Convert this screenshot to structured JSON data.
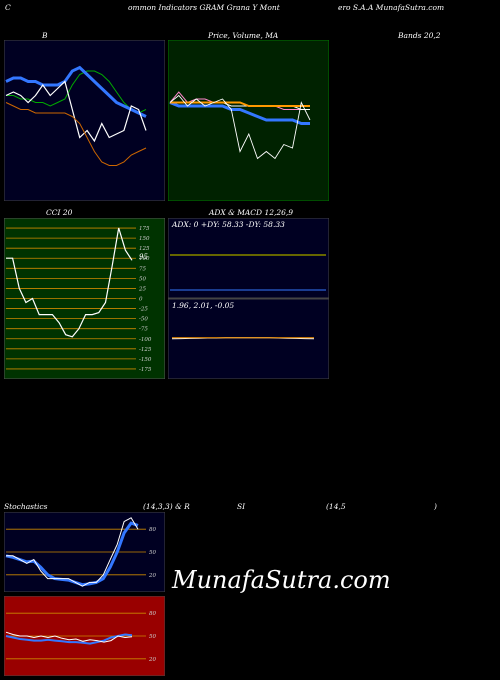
{
  "header": {
    "left": "C",
    "mid1": "ommon  Indicators GRAM Grana  Y Mont",
    "right": "ero  S.A.A  MunafaSutra.com"
  },
  "titles": {
    "b": "B",
    "price": "Price,  Volume,  MA",
    "bands": "Bands 20,2",
    "cci": "CCI 20",
    "adx": "ADX  & MACD 12,26,9",
    "stoch": "Stochastics",
    "stoch_params": "(14,3,3) & R",
    "rsi": "SI",
    "rsi_params": "(14,5",
    "rsi_close": ")"
  },
  "adx_readout": "ADX: 0  +DY: 58.33 -DY: 58.33",
  "macd_readout": "1.96,  2.01,  -0.05",
  "cci_value_label": "95",
  "watermark": "MunafaSutra.com",
  "colors": {
    "background": "#000000",
    "navy_panel": "#000022",
    "green_panel": "#002200",
    "cci_panel": "#003300",
    "rsi_panel": "#990000"
  },
  "chart_data": [
    {
      "type": "line",
      "title": "B",
      "series": [
        {
          "values": [
            82,
            82,
            81,
            81,
            80,
            80,
            79,
            80,
            81,
            85,
            88,
            89,
            89,
            88,
            86,
            83,
            80,
            78,
            77,
            78
          ]
        },
        {
          "values": [
            86,
            87,
            87,
            86,
            86,
            85,
            85,
            85,
            86,
            89,
            90,
            88,
            86,
            84,
            82,
            80,
            79,
            78,
            77,
            76
          ]
        },
        {
          "values": [
            82,
            83,
            82,
            80,
            82,
            85,
            82,
            84,
            86,
            78,
            70,
            72,
            69,
            74,
            70,
            71,
            72,
            79,
            78,
            72
          ]
        },
        {
          "values": [
            80,
            79,
            78,
            78,
            77,
            77,
            77,
            77,
            77,
            76,
            74,
            70,
            66,
            63,
            62,
            62,
            63,
            65,
            66,
            67
          ]
        }
      ]
    },
    {
      "type": "line",
      "title": "Price,  Volume,  MA",
      "series": [
        {
          "values": [
            80,
            83,
            80,
            81,
            81,
            80,
            80,
            80,
            80,
            79,
            79,
            79,
            79,
            78,
            78,
            78,
            78
          ]
        },
        {
          "values": [
            80,
            80,
            80,
            80,
            80,
            80,
            80,
            79,
            79,
            79,
            79,
            79,
            79,
            79,
            79,
            78,
            78
          ]
        },
        {
          "values": [
            80,
            79,
            79,
            79,
            79,
            79,
            79,
            78,
            78,
            77,
            76,
            75,
            75,
            75,
            75,
            74,
            74
          ]
        },
        {
          "values": [
            80,
            80,
            80,
            80,
            80,
            80,
            80,
            80,
            80,
            79,
            79,
            79,
            79,
            79,
            79,
            79,
            79
          ]
        },
        {
          "values": [
            80,
            82,
            79,
            81,
            79,
            80,
            81,
            78,
            66,
            71,
            64,
            66,
            64,
            68,
            67,
            80,
            75
          ]
        }
      ]
    },
    {
      "type": "line",
      "title": "CCI 20",
      "ylim": [
        -175,
        175
      ],
      "yticks": [
        175,
        150,
        125,
        100,
        75,
        50,
        25,
        0,
        -25,
        -50,
        -75,
        -100,
        -125,
        -150,
        -175
      ],
      "series": [
        {
          "values": [
            100,
            100,
            25,
            -10,
            0,
            -40,
            -40,
            -40,
            -60,
            -90,
            -95,
            -75,
            -40,
            -40,
            -35,
            -10,
            80,
            175,
            120,
            95
          ]
        }
      ]
    },
    {
      "type": "line",
      "title": "ADX  & MACD 12,26,9",
      "series": [
        {
          "name": "ADX",
          "values": [
            0,
            0,
            0,
            0,
            0,
            0,
            0,
            0,
            0,
            0,
            0,
            0,
            0,
            0,
            0,
            0,
            0,
            0,
            0
          ]
        },
        {
          "name": "+DY",
          "values": [
            58.33,
            58.33,
            58.33,
            58.33,
            58.33,
            58.33,
            58.33,
            58.33,
            58.33,
            58.33,
            58.33,
            58.33,
            58.33,
            58.33,
            58.33,
            58.33,
            58.33,
            58.33,
            58.33
          ]
        },
        {
          "name": "-DY",
          "values": [
            58.33,
            58.33,
            58.33,
            58.33,
            58.33,
            58.33,
            58.33,
            58.33,
            58.33,
            58.33,
            58.33,
            58.33,
            58.33,
            58.33,
            58.33,
            58.33,
            58.33,
            58.33,
            58.33
          ]
        }
      ]
    },
    {
      "type": "line",
      "title": "MACD",
      "series": [
        {
          "values": [
            1.96,
            1.97,
            1.98,
            1.99,
            2.0,
            2.0,
            2.01,
            2.01,
            2.01,
            2.01,
            2.01,
            2.01,
            2.0,
            1.99,
            1.98,
            1.97,
            1.96
          ]
        },
        {
          "values": [
            2.01,
            2.01,
            2.01,
            2.01,
            2.01,
            2.01,
            2.01,
            2.01,
            2.01,
            2.01,
            2.01,
            2.01,
            2.01,
            2.01,
            2.01,
            2.01,
            2.01
          ]
        }
      ]
    },
    {
      "type": "line",
      "title": "Stochastics",
      "ylim": [
        0,
        100
      ],
      "yticks": [
        80,
        50,
        20
      ],
      "series": [
        {
          "values": [
            45,
            45,
            40,
            35,
            40,
            25,
            15,
            15,
            15,
            15,
            10,
            5,
            10,
            10,
            20,
            40,
            60,
            90,
            95,
            80
          ]
        },
        {
          "values": [
            45,
            43,
            40,
            37,
            38,
            30,
            20,
            15,
            14,
            13,
            10,
            7,
            8,
            10,
            15,
            30,
            50,
            75,
            88,
            85
          ]
        }
      ]
    },
    {
      "type": "line",
      "title": "SI",
      "ylim": [
        0,
        100
      ],
      "yticks": [
        80,
        50,
        20
      ],
      "series": [
        {
          "values": [
            50,
            48,
            46,
            45,
            44,
            44,
            45,
            44,
            43,
            42,
            42,
            41,
            40,
            42,
            44,
            48,
            50,
            52,
            51
          ]
        },
        {
          "values": [
            55,
            52,
            50,
            50,
            48,
            50,
            48,
            50,
            47,
            45,
            46,
            43,
            45,
            44,
            42,
            44,
            50,
            48,
            49
          ]
        }
      ]
    }
  ]
}
